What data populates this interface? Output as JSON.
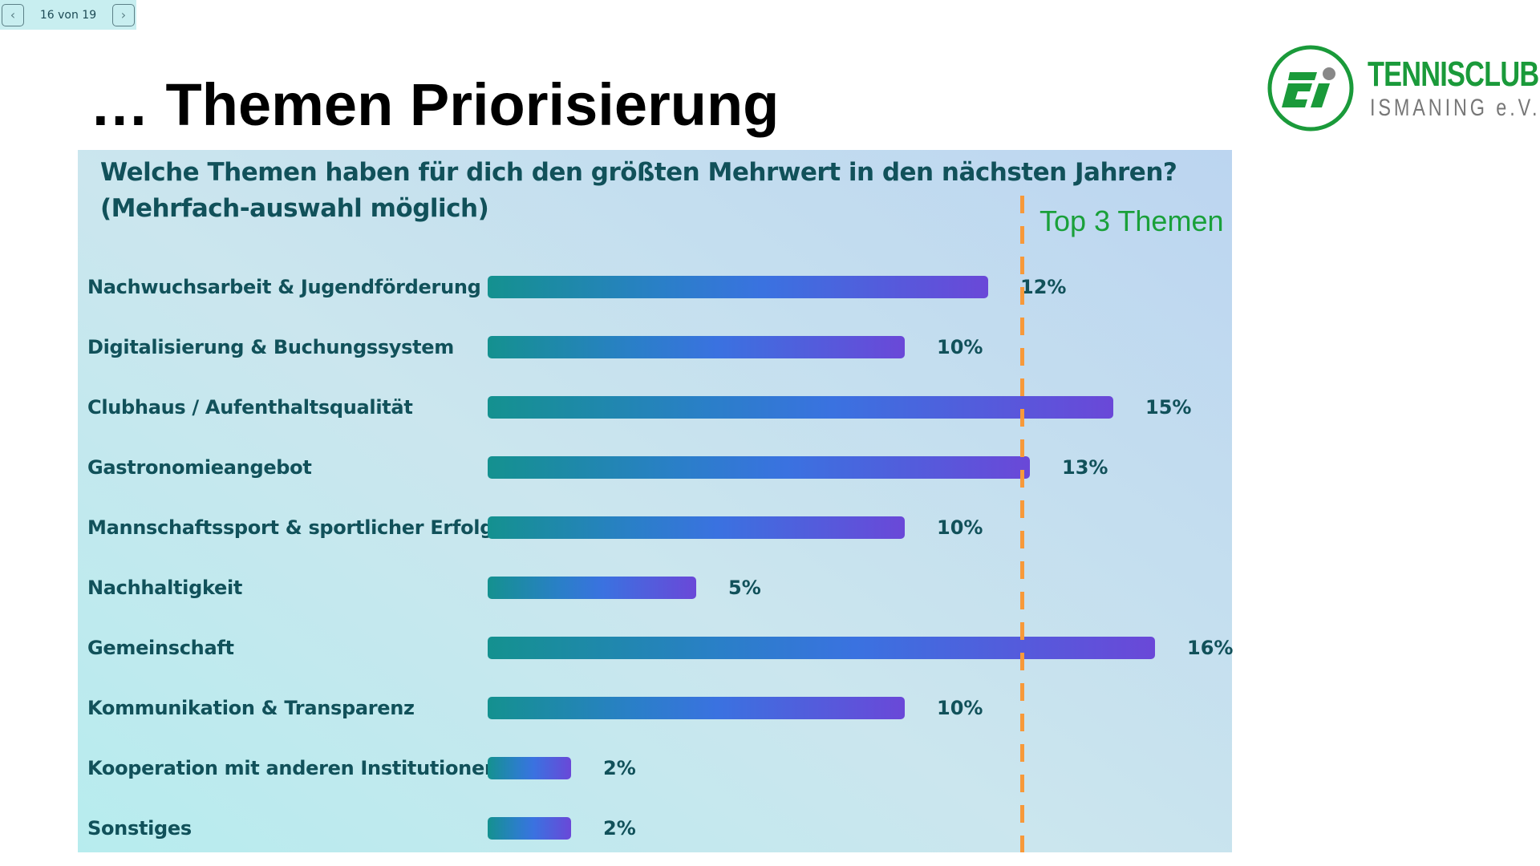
{
  "nav": {
    "prev_icon": "chevron-left-icon",
    "next_icon": "chevron-right-icon",
    "page_text": "16 von 19"
  },
  "title": "… Themen Priorisierung",
  "logo": {
    "line1": "TENNISCLUB",
    "line2": "ISMANING e.V.",
    "mark": "ti",
    "color": "#1a9a3a"
  },
  "chart_data": {
    "type": "bar",
    "orientation": "horizontal",
    "title": "Welche Themen haben für dich den größten Mehrwert in den nächsten Jahren? (Mehrfach-auswahl möglich)",
    "categories": [
      "Nachwuchsarbeit & Jugendförderung",
      "Digitalisierung & Buchungssystem",
      "Clubhaus / Aufenthaltsqualität",
      "Gastronomieangebot",
      "Mannschaftssport & sportlicher Erfolg",
      "Nachhaltigkeit",
      "Gemeinschaft",
      "Kommunikation & Transparenz",
      "Kooperation mit anderen Institutionen",
      "Sonstiges"
    ],
    "values": [
      12,
      10,
      15,
      13,
      10,
      5,
      16,
      10,
      2,
      2
    ],
    "value_labels": [
      "12%",
      "10%",
      "15%",
      "13%",
      "10%",
      "5%",
      "16%",
      "10%",
      "2%",
      "2%"
    ],
    "unit": "%",
    "xlim": [
      0,
      16
    ],
    "grid": false,
    "annotation": {
      "text": "Top 3 Themen",
      "threshold_line": 12.8,
      "line_color": "#f7993a",
      "text_color": "#1aa03a"
    },
    "bar_gradient": [
      "#14918f",
      "#3a72e0",
      "#6a48d8"
    ]
  }
}
